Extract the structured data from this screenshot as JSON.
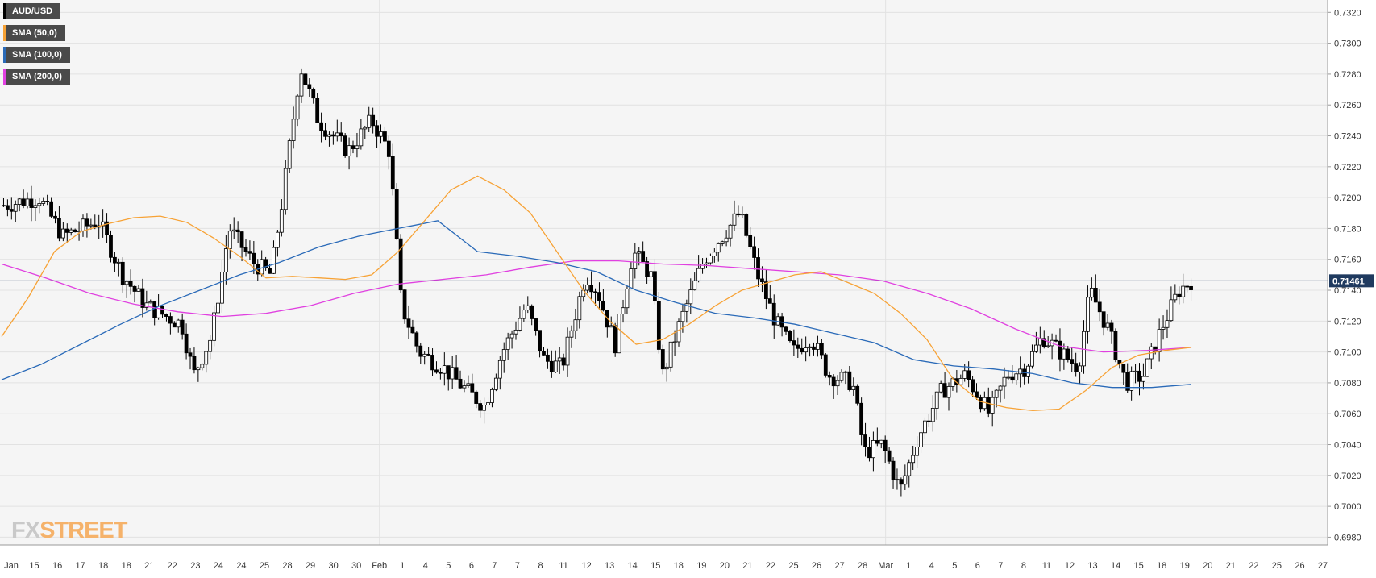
{
  "chart_data": {
    "type": "candlestick",
    "symbol": "AUD/USD",
    "ylim": [
      0.6975,
      0.7328
    ],
    "y_ticks": [
      "0.6980",
      "0.7000",
      "0.7020",
      "0.7040",
      "0.7060",
      "0.7080",
      "0.7100",
      "0.7120",
      "0.7140",
      "0.7160",
      "0.7180",
      "0.7200",
      "0.7220",
      "0.7240",
      "0.7260",
      "0.7280",
      "0.7300",
      "0.7320"
    ],
    "x_ticks": [
      "Jan",
      "15",
      "16",
      "17",
      "18",
      "18",
      "21",
      "22",
      "23",
      "24",
      "24",
      "25",
      "28",
      "29",
      "30",
      "30",
      "Feb",
      "1",
      "4",
      "5",
      "6",
      "7",
      "7",
      "8",
      "11",
      "12",
      "13",
      "14",
      "15",
      "18",
      "19",
      "20",
      "21",
      "22",
      "25",
      "26",
      "27",
      "28",
      "Mar",
      "1",
      "4",
      "5",
      "6",
      "7",
      "8",
      "11",
      "12",
      "13",
      "14",
      "15",
      "18",
      "19",
      "20",
      "21",
      "22",
      "25",
      "26",
      "27"
    ],
    "last_price_label": "0.71461",
    "last_price": 0.71461,
    "series": [
      {
        "name": "AUD/USD",
        "color": "#000000",
        "note": "price series"
      },
      {
        "name": "SMA (50,0)",
        "color": "#f7a235"
      },
      {
        "name": "SMA (100,0)",
        "color": "#2a6ab8"
      },
      {
        "name": "SMA (200,0)",
        "color": "#e040e0"
      }
    ],
    "sma50": [
      0.711,
      0.7135,
      0.7165,
      0.7178,
      0.7183,
      0.7187,
      0.7188,
      0.7184,
      0.7174,
      0.7162,
      0.7148,
      0.7149,
      0.7148,
      0.7147,
      0.715,
      0.7165,
      0.7185,
      0.7205,
      0.7214,
      0.7205,
      0.719,
      0.7165,
      0.714,
      0.712,
      0.7105,
      0.7108,
      0.7118,
      0.713,
      0.714,
      0.7145,
      0.715,
      0.7152,
      0.7145,
      0.7138,
      0.7125,
      0.7108,
      0.7082,
      0.7068,
      0.7064,
      0.7062,
      0.7063,
      0.7075,
      0.709,
      0.7098,
      0.7101,
      0.7103
    ],
    "sma100": [
      0.7082,
      0.7092,
      0.7105,
      0.7118,
      0.713,
      0.714,
      0.715,
      0.7158,
      0.7168,
      0.7175,
      0.718,
      0.7185,
      0.7165,
      0.7162,
      0.7158,
      0.7152,
      0.714,
      0.7132,
      0.7125,
      0.7122,
      0.7118,
      0.7112,
      0.7106,
      0.7095,
      0.7091,
      0.7089,
      0.7086,
      0.708,
      0.7077,
      0.7077,
      0.7079
    ],
    "sma200": [
      0.7157,
      0.7148,
      0.7138,
      0.7131,
      0.7126,
      0.7123,
      0.7125,
      0.713,
      0.7138,
      0.7144,
      0.7147,
      0.715,
      0.7155,
      0.7159,
      0.7159,
      0.7157,
      0.7156,
      0.7154,
      0.7152,
      0.715,
      0.7146,
      0.7138,
      0.7128,
      0.7115,
      0.7104,
      0.71,
      0.7101,
      0.7103
    ]
  },
  "legend": [
    {
      "label": "AUD/USD",
      "color": "#000000"
    },
    {
      "label": "SMA (50,0)",
      "color": "#f7a235"
    },
    {
      "label": "SMA (100,0)",
      "color": "#2a6ab8"
    },
    {
      "label": "SMA (200,0)",
      "color": "#e040e0"
    }
  ],
  "watermark": {
    "part1": "FX",
    "part2": "STREET"
  }
}
